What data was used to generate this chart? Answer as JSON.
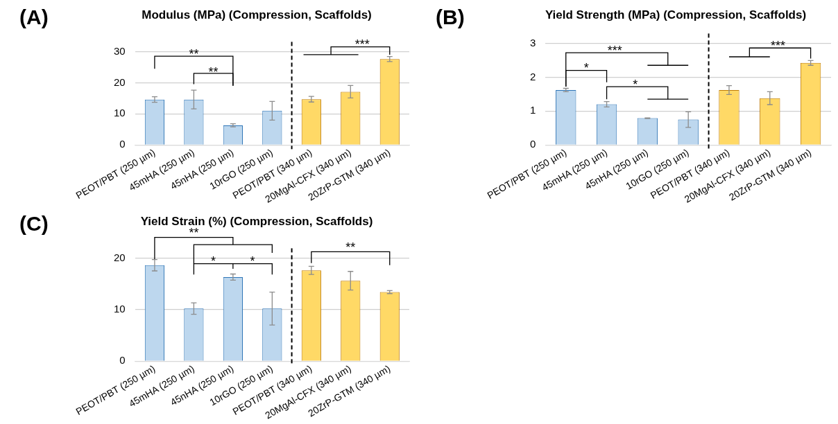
{
  "chart_data": [
    {
      "type": "bar",
      "title": "Modulus (MPa) (Compression, Scaffolds)",
      "categories": [
        "PEOT/PBT (250 µm)",
        "45mHA (250 µm)",
        "45nHA (250 µm)",
        "10rGO (250 µm)",
        "PEOT/PBT (340 µm)",
        "20MgAl-CFX (340 µm)",
        "20ZrP-GTM (340 µm)"
      ],
      "values": [
        14.6,
        14.6,
        6.3,
        11.0,
        14.7,
        17.1,
        27.6
      ],
      "errors": [
        0.9,
        3.0,
        0.5,
        3.0,
        0.9,
        2.0,
        0.8
      ],
      "colors": [
        "#bdd7ee",
        "#bdd7ee",
        "#bdd7ee",
        "#bdd7ee",
        "#ffd966",
        "#ffd966",
        "#ffd966"
      ],
      "ylim": [
        0,
        30
      ],
      "yticks": [
        0,
        10,
        20,
        30
      ],
      "grid": "y",
      "legend": false,
      "annotations": [
        "(A)",
        "**",
        "**",
        "***"
      ]
    },
    {
      "type": "bar",
      "title": "Yield Strength (MPa) (Compression, Scaffolds)",
      "categories": [
        "PEOT/PBT (250 µm)",
        "45mHA (250 µm)",
        "45nHA (250 µm)",
        "10rGO (250 µm)",
        "PEOT/PBT (340 µm)",
        "20MgAl-CFX (340 µm)",
        "20ZrP-GTM (340 µm)"
      ],
      "values": [
        1.62,
        1.2,
        0.79,
        0.75,
        1.62,
        1.38,
        2.42
      ],
      "errors": [
        0.05,
        0.08,
        0.01,
        0.23,
        0.13,
        0.19,
        0.07
      ],
      "colors": [
        "#bdd7ee",
        "#bdd7ee",
        "#bdd7ee",
        "#bdd7ee",
        "#ffd966",
        "#ffd966",
        "#ffd966"
      ],
      "ylim": [
        0,
        3
      ],
      "yticks": [
        0,
        1,
        2,
        3
      ],
      "grid": "y",
      "legend": false,
      "annotations": [
        "(B)",
        "***",
        "*",
        "*",
        "***"
      ]
    },
    {
      "type": "bar",
      "title": "Yield Strain (%) (Compression, Scaffolds)",
      "categories": [
        "PEOT/PBT (250 µm)",
        "45mHA (250 µm)",
        "45nHA (250 µm)",
        "10rGO (250 µm)",
        "PEOT/PBT (340 µm)",
        "20MgAl-CFX (340 µm)",
        "20ZrP-GTM (340 µm)"
      ],
      "values": [
        18.6,
        10.2,
        16.3,
        10.2,
        17.6,
        15.6,
        13.4
      ],
      "errors": [
        1.1,
        1.1,
        0.6,
        3.2,
        0.8,
        1.8,
        0.3
      ],
      "colors": [
        "#bdd7ee",
        "#bdd7ee",
        "#bdd7ee",
        "#bdd7ee",
        "#ffd966",
        "#ffd966",
        "#ffd966"
      ],
      "ylim": [
        0,
        20
      ],
      "yticks": [
        0,
        10,
        20
      ],
      "grid": "y",
      "legend": false,
      "annotations": [
        "(C)",
        "**",
        "*",
        "*",
        "**"
      ]
    }
  ]
}
